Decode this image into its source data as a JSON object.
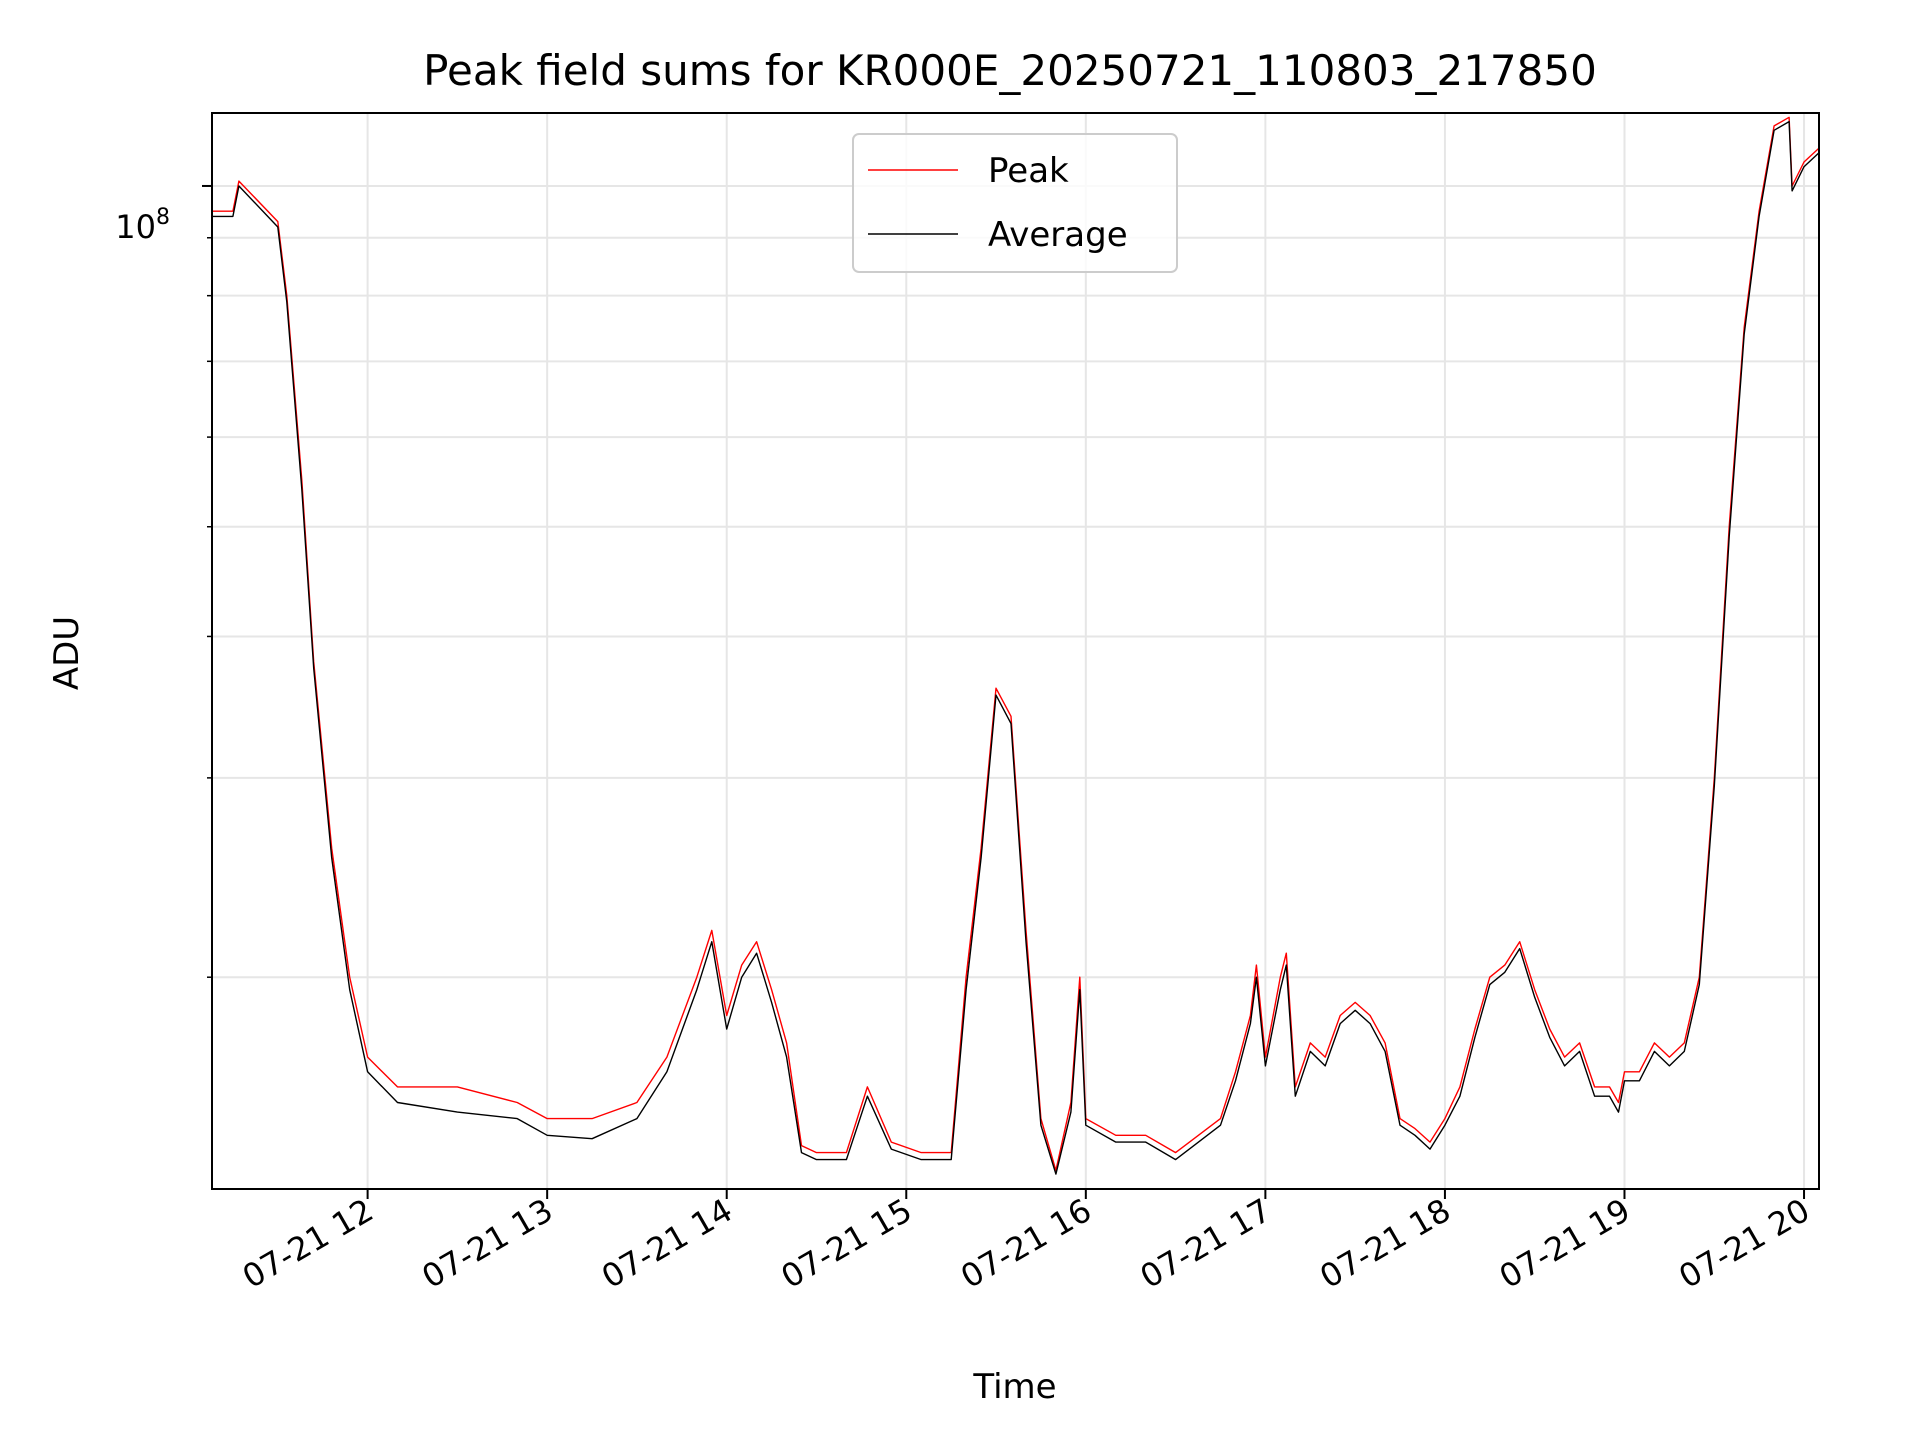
{
  "chart_data": {
    "type": "line",
    "title": "Peak field sums for KR000E_20250721_110803_217850",
    "xlabel": "Time",
    "ylabel": "ADU",
    "yscale": "log",
    "grid": true,
    "legend_position": "upper center",
    "xlim": [
      "2025-07-21 11:08",
      "2025-07-21 20:05"
    ],
    "ylim": [
      13000000,
      116000000
    ],
    "x_ticks": [
      "07-21 12",
      "07-21 13",
      "07-21 14",
      "07-21 15",
      "07-21 16",
      "07-21 17",
      "07-21 18",
      "07-21 19",
      "07-21 20"
    ],
    "y_tick_major": {
      "base": "10",
      "exp": "8",
      "value": 100000000
    },
    "y_minor_ticks": [
      20000000,
      30000000,
      40000000,
      50000000,
      60000000,
      70000000,
      80000000,
      90000000
    ],
    "colors": {
      "Peak": "#ff0000",
      "Average": "#000000"
    },
    "series": [
      {
        "name": "Peak",
        "x": [
          "2025-07-21 11:08",
          "2025-07-21 11:15",
          "2025-07-21 11:17",
          "2025-07-21 11:30",
          "2025-07-21 11:33",
          "2025-07-21 11:38",
          "2025-07-21 11:42",
          "2025-07-21 11:48",
          "2025-07-21 11:54",
          "2025-07-21 12:00",
          "2025-07-21 12:10",
          "2025-07-21 12:30",
          "2025-07-21 12:50",
          "2025-07-21 13:00",
          "2025-07-21 13:15",
          "2025-07-21 13:30",
          "2025-07-21 13:40",
          "2025-07-21 13:50",
          "2025-07-21 13:55",
          "2025-07-21 14:00",
          "2025-07-21 14:05",
          "2025-07-21 14:10",
          "2025-07-21 14:15",
          "2025-07-21 14:20",
          "2025-07-21 14:25",
          "2025-07-21 14:30",
          "2025-07-21 14:40",
          "2025-07-21 14:47",
          "2025-07-21 14:55",
          "2025-07-21 15:05",
          "2025-07-21 15:15",
          "2025-07-21 15:20",
          "2025-07-21 15:25",
          "2025-07-21 15:30",
          "2025-07-21 15:35",
          "2025-07-21 15:40",
          "2025-07-21 15:45",
          "2025-07-21 15:50",
          "2025-07-21 15:55",
          "2025-07-21 15:58",
          "2025-07-21 16:00",
          "2025-07-21 16:10",
          "2025-07-21 16:20",
          "2025-07-21 16:30",
          "2025-07-21 16:45",
          "2025-07-21 16:50",
          "2025-07-21 16:55",
          "2025-07-21 16:57",
          "2025-07-21 17:00",
          "2025-07-21 17:05",
          "2025-07-21 17:07",
          "2025-07-21 17:10",
          "2025-07-21 17:15",
          "2025-07-21 17:20",
          "2025-07-21 17:25",
          "2025-07-21 17:30",
          "2025-07-21 17:35",
          "2025-07-21 17:40",
          "2025-07-21 17:45",
          "2025-07-21 17:50",
          "2025-07-21 17:55",
          "2025-07-21 18:00",
          "2025-07-21 18:05",
          "2025-07-21 18:10",
          "2025-07-21 18:15",
          "2025-07-21 18:20",
          "2025-07-21 18:25",
          "2025-07-21 18:30",
          "2025-07-21 18:35",
          "2025-07-21 18:40",
          "2025-07-21 18:45",
          "2025-07-21 18:50",
          "2025-07-21 18:55",
          "2025-07-21 18:58",
          "2025-07-21 19:00",
          "2025-07-21 19:05",
          "2025-07-21 19:10",
          "2025-07-21 19:15",
          "2025-07-21 19:20",
          "2025-07-21 19:25",
          "2025-07-21 19:30",
          "2025-07-21 19:35",
          "2025-07-21 19:40",
          "2025-07-21 19:45",
          "2025-07-21 19:50",
          "2025-07-21 19:55",
          "2025-07-21 19:56",
          "2025-07-21 20:00",
          "2025-07-21 20:05"
        ],
        "y": [
          95000000,
          95000000,
          101000000,
          93000000,
          80000000,
          55000000,
          38000000,
          26000000,
          20000000,
          17000000,
          16000000,
          16000000,
          15500000,
          15000000,
          15000000,
          15500000,
          17000000,
          20000000,
          22000000,
          18500000,
          20500000,
          21500000,
          19500000,
          17500000,
          14200000,
          14000000,
          14000000,
          16000000,
          14300000,
          14000000,
          14000000,
          20000000,
          26000000,
          36000000,
          34000000,
          22000000,
          15000000,
          13500000,
          15500000,
          20000000,
          15000000,
          14500000,
          14500000,
          14000000,
          15000000,
          16500000,
          18500000,
          20500000,
          17000000,
          20000000,
          21000000,
          16000000,
          17500000,
          17000000,
          18500000,
          19000000,
          18500000,
          17500000,
          15000000,
          14700000,
          14300000,
          15000000,
          16000000,
          18000000,
          20000000,
          20500000,
          21500000,
          19500000,
          18000000,
          17000000,
          17500000,
          16000000,
          16000000,
          15500000,
          16500000,
          16500000,
          17500000,
          17000000,
          17500000,
          20000000,
          30000000,
          50000000,
          75000000,
          95000000,
          113000000,
          115000000,
          100000000,
          105000000,
          108000000
        ]
      },
      {
        "name": "Average",
        "x": [
          "2025-07-21 11:08",
          "2025-07-21 11:15",
          "2025-07-21 11:17",
          "2025-07-21 11:30",
          "2025-07-21 11:33",
          "2025-07-21 11:38",
          "2025-07-21 11:42",
          "2025-07-21 11:48",
          "2025-07-21 11:54",
          "2025-07-21 12:00",
          "2025-07-21 12:10",
          "2025-07-21 12:30",
          "2025-07-21 12:50",
          "2025-07-21 13:00",
          "2025-07-21 13:15",
          "2025-07-21 13:30",
          "2025-07-21 13:40",
          "2025-07-21 13:50",
          "2025-07-21 13:55",
          "2025-07-21 14:00",
          "2025-07-21 14:05",
          "2025-07-21 14:10",
          "2025-07-21 14:15",
          "2025-07-21 14:20",
          "2025-07-21 14:25",
          "2025-07-21 14:30",
          "2025-07-21 14:40",
          "2025-07-21 14:47",
          "2025-07-21 14:55",
          "2025-07-21 15:05",
          "2025-07-21 15:15",
          "2025-07-21 15:20",
          "2025-07-21 15:25",
          "2025-07-21 15:30",
          "2025-07-21 15:35",
          "2025-07-21 15:40",
          "2025-07-21 15:45",
          "2025-07-21 15:50",
          "2025-07-21 15:55",
          "2025-07-21 15:58",
          "2025-07-21 16:00",
          "2025-07-21 16:10",
          "2025-07-21 16:20",
          "2025-07-21 16:30",
          "2025-07-21 16:45",
          "2025-07-21 16:50",
          "2025-07-21 16:55",
          "2025-07-21 16:57",
          "2025-07-21 17:00",
          "2025-07-21 17:05",
          "2025-07-21 17:07",
          "2025-07-21 17:10",
          "2025-07-21 17:15",
          "2025-07-21 17:20",
          "2025-07-21 17:25",
          "2025-07-21 17:30",
          "2025-07-21 17:35",
          "2025-07-21 17:40",
          "2025-07-21 17:45",
          "2025-07-21 17:50",
          "2025-07-21 17:55",
          "2025-07-21 18:00",
          "2025-07-21 18:05",
          "2025-07-21 18:10",
          "2025-07-21 18:15",
          "2025-07-21 18:20",
          "2025-07-21 18:25",
          "2025-07-21 18:30",
          "2025-07-21 18:35",
          "2025-07-21 18:40",
          "2025-07-21 18:45",
          "2025-07-21 18:50",
          "2025-07-21 18:55",
          "2025-07-21 18:58",
          "2025-07-21 19:00",
          "2025-07-21 19:05",
          "2025-07-21 19:10",
          "2025-07-21 19:15",
          "2025-07-21 19:20",
          "2025-07-21 19:25",
          "2025-07-21 19:30",
          "2025-07-21 19:35",
          "2025-07-21 19:40",
          "2025-07-21 19:45",
          "2025-07-21 19:50",
          "2025-07-21 19:55",
          "2025-07-21 19:56",
          "2025-07-21 20:00",
          "2025-07-21 20:05"
        ],
        "y": [
          94000000,
          94000000,
          100000000,
          92000000,
          79000000,
          54000000,
          37500000,
          25500000,
          19500000,
          16500000,
          15500000,
          15200000,
          15000000,
          14500000,
          14400000,
          15000000,
          16500000,
          19500000,
          21500000,
          18000000,
          20000000,
          21000000,
          19000000,
          17000000,
          14000000,
          13800000,
          13800000,
          15700000,
          14100000,
          13800000,
          13800000,
          19500000,
          25500000,
          35500000,
          33500000,
          21500000,
          14800000,
          13400000,
          15200000,
          19500000,
          14800000,
          14300000,
          14300000,
          13800000,
          14800000,
          16200000,
          18200000,
          20000000,
          16700000,
          19500000,
          20500000,
          15700000,
          17200000,
          16700000,
          18200000,
          18700000,
          18200000,
          17200000,
          14800000,
          14500000,
          14100000,
          14800000,
          15700000,
          17700000,
          19700000,
          20200000,
          21200000,
          19200000,
          17700000,
          16700000,
          17200000,
          15700000,
          15700000,
          15200000,
          16200000,
          16200000,
          17200000,
          16700000,
          17200000,
          19700000,
          29500000,
          49000000,
          74000000,
          94000000,
          112000000,
          114000000,
          99000000,
          104000000,
          107000000
        ]
      }
    ]
  }
}
